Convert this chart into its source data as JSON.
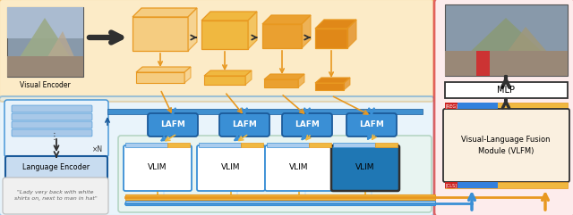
{
  "fig_width": 6.4,
  "fig_height": 2.41,
  "dpi": 100,
  "colors": {
    "orange_bg": "#FAD890",
    "orange_dark": "#E89820",
    "orange_mid": "#F0B840",
    "orange_light": "#F5CC80",
    "blue_lafm": "#3A8FD5",
    "blue_dark": "#1A5A9A",
    "blue_bg": "#D0E8F8",
    "blue_bar": "#4090D0",
    "teal_bg": "#E8F4EE",
    "teal_border": "#A0C8B0",
    "red_border": "#DD4444",
    "pink_bg": "#FDE8E8",
    "gray_dark": "#303030",
    "gray_med": "#606060",
    "white": "#FFFFFF",
    "black": "#000000",
    "lang_box_bg": "#C8DCF0",
    "lang_token_bg": "#A8C8E8",
    "quote_bg": "#F0F0F0",
    "quote_border": "#BBBBBB",
    "red_small": "#CC2222",
    "blue_small": "#3380DD",
    "vlim_top_blue": "#AACCEE",
    "vlim_top_orange": "#F0B840",
    "vlfm_bg": "#FAF0E0",
    "img_bg": "#8899AA",
    "img_mountain": "#7A9070",
    "img_people": "#998877"
  },
  "lafm_labels": [
    "LAFM",
    "LAFM",
    "LAFM",
    "LAFM"
  ],
  "vlim_labels": [
    "VLIM",
    "VLIM",
    "VLIM",
    "VLIM"
  ],
  "visual_encoder_label": "Visual Encoder",
  "language_encoder_label": "Language Encoder",
  "mlp_label": "MLP",
  "vlfm_label": "Visual-Language Fusion\nModule (VLFM)",
  "quote_text": "\"Lady very back with white\nshirts on, next to man in hat\"",
  "xN_text": "×N"
}
